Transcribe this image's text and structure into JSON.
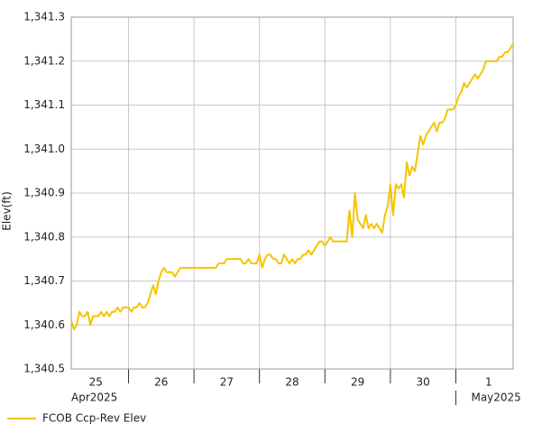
{
  "chart_data": {
    "type": "line",
    "y_label": "Elev(ft)",
    "grid": true,
    "xlim": [
      0,
      162
    ],
    "xticks": [
      21,
      45,
      69,
      93,
      117,
      141
    ],
    "xtick_labels": [
      {
        "value": 9,
        "label": "25"
      },
      {
        "value": 33,
        "label": "26"
      },
      {
        "value": 57,
        "label": "27"
      },
      {
        "value": 81,
        "label": "28"
      },
      {
        "value": 105,
        "label": "29"
      },
      {
        "value": 129,
        "label": "30"
      },
      {
        "value": 153,
        "label": "1"
      }
    ],
    "month_labels": [
      {
        "value": 0,
        "label": "Apr2025"
      },
      {
        "value": 141,
        "label": "May2025"
      }
    ],
    "ylim": [
      1340.5,
      1341.3
    ],
    "yticks": [
      {
        "value": 1340.5,
        "label": "1,340.5"
      },
      {
        "value": 1340.6,
        "label": "1,340.6"
      },
      {
        "value": 1340.7,
        "label": "1,340.7"
      },
      {
        "value": 1340.8,
        "label": "1,340.8"
      },
      {
        "value": 1340.9,
        "label": "1,340.9"
      },
      {
        "value": 1341.0,
        "label": "1,341.0"
      },
      {
        "value": 1341.1,
        "label": "1,341.1"
      },
      {
        "value": 1341.2,
        "label": "1,341.2"
      },
      {
        "value": 1341.3,
        "label": "1,341.3"
      }
    ],
    "series": [
      {
        "name": "FCOB Ccp-Rev Elev",
        "color": "#f5c400",
        "values": [
          1340.61,
          1340.59,
          1340.6,
          1340.63,
          1340.62,
          1340.62,
          1340.63,
          1340.6,
          1340.62,
          1340.62,
          1340.62,
          1340.63,
          1340.62,
          1340.63,
          1340.62,
          1340.63,
          1340.63,
          1340.64,
          1340.63,
          1340.64,
          1340.64,
          1340.64,
          1340.63,
          1340.64,
          1340.64,
          1340.65,
          1340.64,
          1340.64,
          1340.65,
          1340.67,
          1340.69,
          1340.67,
          1340.7,
          1340.72,
          1340.73,
          1340.72,
          1340.72,
          1340.72,
          1340.71,
          1340.72,
          1340.73,
          1340.73,
          1340.73,
          1340.73,
          1340.73,
          1340.73,
          1340.73,
          1340.73,
          1340.73,
          1340.73,
          1340.73,
          1340.73,
          1340.73,
          1340.73,
          1340.74,
          1340.74,
          1340.74,
          1340.75,
          1340.75,
          1340.75,
          1340.75,
          1340.75,
          1340.75,
          1340.74,
          1340.74,
          1340.75,
          1340.74,
          1340.74,
          1340.74,
          1340.76,
          1340.73,
          1340.75,
          1340.76,
          1340.76,
          1340.75,
          1340.75,
          1340.74,
          1340.74,
          1340.76,
          1340.75,
          1340.74,
          1340.75,
          1340.74,
          1340.75,
          1340.75,
          1340.76,
          1340.76,
          1340.77,
          1340.76,
          1340.77,
          1340.78,
          1340.79,
          1340.79,
          1340.78,
          1340.79,
          1340.8,
          1340.79,
          1340.79,
          1340.79,
          1340.79,
          1340.79,
          1340.79,
          1340.86,
          1340.8,
          1340.9,
          1340.84,
          1340.83,
          1340.82,
          1340.85,
          1340.82,
          1340.83,
          1340.82,
          1340.83,
          1340.82,
          1340.81,
          1340.85,
          1340.87,
          1340.92,
          1340.85,
          1340.92,
          1340.91,
          1340.92,
          1340.89,
          1340.97,
          1340.94,
          1340.96,
          1340.95,
          1340.99,
          1341.03,
          1341.01,
          1341.03,
          1341.04,
          1341.05,
          1341.06,
          1341.04,
          1341.06,
          1341.06,
          1341.07,
          1341.09,
          1341.09,
          1341.09,
          1341.1,
          1341.12,
          1341.13,
          1341.15,
          1341.14,
          1341.15,
          1341.16,
          1341.17,
          1341.16,
          1341.17,
          1341.18,
          1341.2,
          1341.2,
          1341.2,
          1341.2,
          1341.2,
          1341.21,
          1341.21,
          1341.22,
          1341.22,
          1341.23,
          1341.24
        ]
      }
    ]
  }
}
